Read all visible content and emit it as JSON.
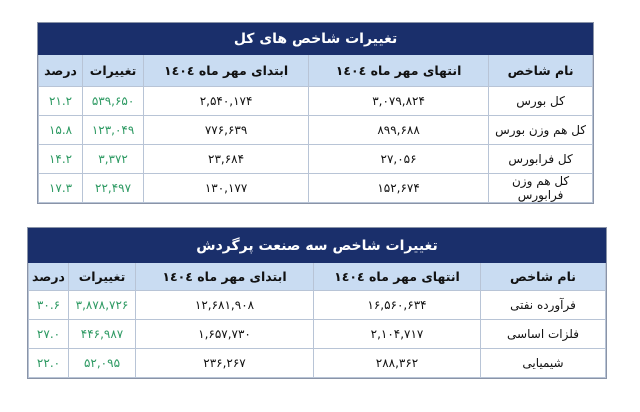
{
  "tables": [
    {
      "title": "تغییرات شاخص های کل",
      "headers": [
        "نام شاخص",
        "انتهای مهر ماه ١٤٠٤",
        "ابتدای مهر ماه ١٤٠٤",
        "تغییرات",
        "درصد"
      ],
      "rows": [
        [
          "کل بورس",
          "۳,۰۷۹,۸۲۴",
          "۲,۵۴۰,۱۷۴",
          "۵۳۹,۶۵۰",
          "۲۱.۲"
        ],
        [
          "کل هم وزن بورس",
          "۸۹۹,۶۸۸",
          "۷۷۶,۶۳۹",
          "۱۲۳,۰۴۹",
          "۱۵.۸"
        ],
        [
          "کل فرابورس",
          "۲۷,۰۵۶",
          "۲۳,۶۸۴",
          "۳,۳۷۲",
          "۱۴.۲"
        ],
        [
          "کل هم وزن فرابورس",
          "۱۵۲,۶۷۴",
          "۱۳۰,۱۷۷",
          "۲۲,۴۹۷",
          "۱۷.۳"
        ]
      ]
    },
    {
      "title": "تغییرات شاخص سه صنعت پرگردش",
      "headers": [
        "نام شاخص",
        "انتهای مهر ماه ١٤٠٤",
        "ابتدای مهر ماه ١٤٠٤",
        "تغییرات",
        "درصد"
      ],
      "rows": [
        [
          "فرآورده نفتی",
          "۱۶,۵۶۰,۶۳۴",
          "۱۲,۶۸۱,۹۰۸",
          "۳,۸۷۸,۷۲۶",
          "۳۰.۶"
        ],
        [
          "فلزات اساسی",
          "۲,۱۰۴,۷۱۷",
          "۱,۶۵۷,۷۳۰",
          "۴۴۶,۹۸۷",
          "۲۷.۰"
        ],
        [
          "شیمیایی",
          "۲۸۸,۳۶۲",
          "۲۳۶,۲۶۷",
          "۵۲,۰۹۵",
          "۲۲.۰"
        ]
      ]
    }
  ],
  "colors": {
    "title_bg": "#1a2f6b",
    "header_bg": "#c9dcf2",
    "change_text": "#2e9a63"
  }
}
